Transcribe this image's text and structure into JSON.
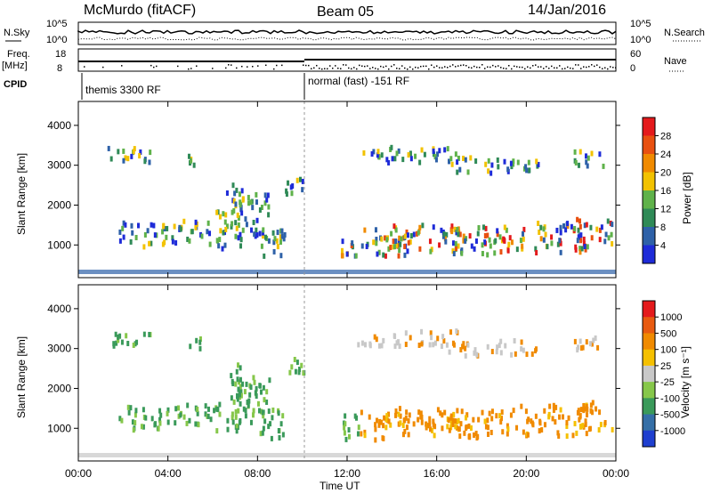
{
  "header": {
    "station": "McMurdo (fitACF)",
    "beam": "Beam 05",
    "date": "14/Jan/2016"
  },
  "strips": {
    "nsky_label": "N.Sky",
    "nsky_ticks": [
      "10^5",
      "10^0"
    ],
    "nsearch_label": "N.Search",
    "nsearch_ticks": [
      "10^5",
      "10^0"
    ],
    "freq_label": "Freq.",
    "freq_unit": "[MHz]",
    "freq_ticks": [
      "18",
      "8"
    ],
    "nave_label": "Nave",
    "nave_ticks": [
      "60",
      "0"
    ],
    "cpid_label": "CPID",
    "cpid_segments": [
      "themis 3300 RF",
      "normal (fast) -151 RF"
    ]
  },
  "chart_data": [
    {
      "type": "heatmap",
      "panel": "power",
      "ylabel": "Slant Range [km]",
      "y_ticks": [
        1000,
        2000,
        3000,
        4000
      ],
      "ylim": [
        180,
        4600
      ],
      "colorbar_label": "Power [dB]",
      "colorbar_ticks": [
        "4",
        "8",
        "12",
        "16",
        "20",
        "24",
        "28"
      ],
      "colorbar_colors": [
        "#1e2bd8",
        "#2e61a8",
        "#2f8a57",
        "#5fb24a",
        "#f2c200",
        "#f08a00",
        "#e85010",
        "#e41a1c"
      ]
    },
    {
      "type": "heatmap",
      "panel": "velocity",
      "ylabel": "Slant Range [km]",
      "y_ticks": [
        1000,
        2000,
        3000,
        4000
      ],
      "ylim": [
        180,
        4600
      ],
      "colorbar_label": "Velocity [m s⁻¹]",
      "colorbar_ticks": [
        "1000",
        "500",
        "100",
        "25",
        "-25",
        "-100",
        "-500",
        "-1000"
      ],
      "colorbar_colors": [
        "#1f3fcf",
        "#356fa7",
        "#3a9a5a",
        "#86c74a",
        "#c8c8c8",
        "#f5c000",
        "#f08a00",
        "#e85a10",
        "#e41a1c"
      ]
    }
  ],
  "x_axis": {
    "label": "Time UT",
    "ticks": [
      "00:00",
      "04:00",
      "08:00",
      "12:00",
      "16:00",
      "20:00",
      "00:00"
    ]
  }
}
